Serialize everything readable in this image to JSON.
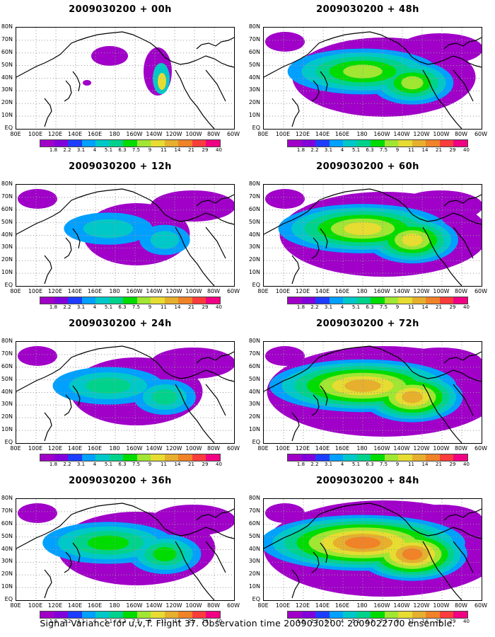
{
  "panels": [
    {
      "title": "2009030200 + 00h",
      "intensity": 0
    },
    {
      "title": "2009030200 + 48h",
      "intensity": 4
    },
    {
      "title": "2009030200 + 12h",
      "intensity": 1
    },
    {
      "title": "2009030200 + 60h",
      "intensity": 5
    },
    {
      "title": "2009030200 + 24h",
      "intensity": 2
    },
    {
      "title": "2009030200 + 72h",
      "intensity": 6
    },
    {
      "title": "2009030200 + 36h",
      "intensity": 3
    },
    {
      "title": "2009030200 + 84h",
      "intensity": 7
    }
  ],
  "lat_labels": [
    "80N",
    "70N",
    "60N",
    "50N",
    "40N",
    "30N",
    "20N",
    "10N",
    "EQ"
  ],
  "lon_labels": [
    "80E",
    "100E",
    "120E",
    "140E",
    "160E",
    "180",
    "160W",
    "140W",
    "120W",
    "100W",
    "80W",
    "60W"
  ],
  "colorbar": {
    "labels": [
      "1.8",
      "2.2",
      "3.1",
      "4",
      "5.1",
      "6.3",
      "7.5",
      "9",
      "11",
      "14",
      "21",
      "29",
      "40"
    ],
    "colors": [
      "#a000c8",
      "#8200dc",
      "#1e3cff",
      "#00a0ff",
      "#00c8c8",
      "#00d28c",
      "#00dc00",
      "#a0e632",
      "#e6dc32",
      "#e6af2d",
      "#f08228",
      "#fa3c3c",
      "#f00082"
    ]
  },
  "caption": "Signal Variance for u,v,T. Flight 37. Observation time 2009030200. 2009022700 ensemble."
}
